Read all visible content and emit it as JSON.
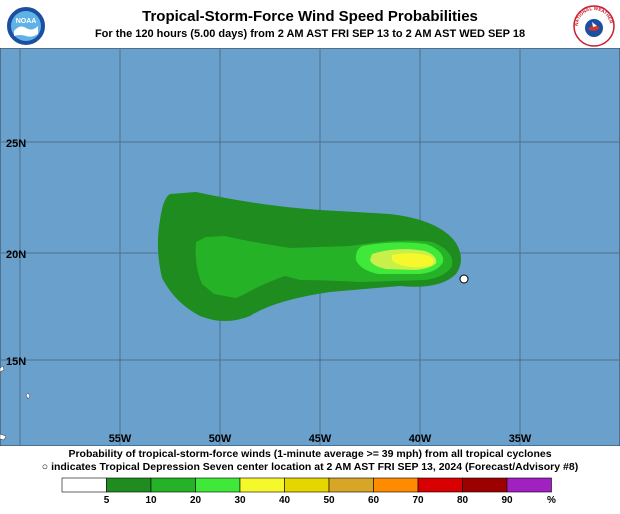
{
  "header": {
    "title": "Tropical-Storm-Force Wind Speed Probabilities",
    "subtitle": "For the 120 hours (5.00 days) from 2 AM AST FRI SEP 13 to 2 AM AST WED SEP 18",
    "left_logo_text": "NOAA",
    "right_logo_text": "NATIONAL WEATHER SERVICE"
  },
  "map": {
    "ocean_color": "#6aa0cc",
    "grid_color": "#4f6f8a",
    "lat_labels": [
      "25N",
      "20N",
      "15N"
    ],
    "lon_labels": [
      "55W",
      "50W",
      "45W",
      "40W",
      "35W"
    ],
    "center_marker": {
      "lat": 18.8,
      "lon": -37.8,
      "label": "Tropical Depression Seven center location"
    }
  },
  "caption": {
    "line1": "Probability of tropical-storm-force winds (1-minute average >= 39 mph) from all tropical cyclones",
    "line2": "indicates Tropical Depression Seven center location at 2 AM AST FRI SEP 13, 2024 (Forecast/Advisory #8)"
  },
  "legend": {
    "unit": "%",
    "bins": [
      {
        "label": "5",
        "color": "#ffffff"
      },
      {
        "label": "10",
        "color": "#1f8c1f"
      },
      {
        "label": "20",
        "color": "#26b226"
      },
      {
        "label": "30",
        "color": "#40e83a"
      },
      {
        "label": "40",
        "color": "#f5f82a"
      },
      {
        "label": "50",
        "color": "#e6d600"
      },
      {
        "label": "60",
        "color": "#d8a626"
      },
      {
        "label": "70",
        "color": "#ff8c00"
      },
      {
        "label": "80",
        "color": "#d80000"
      },
      {
        "label": "90",
        "color": "#9c0000"
      },
      {
        "label": "",
        "color": "#a020c0"
      }
    ]
  }
}
